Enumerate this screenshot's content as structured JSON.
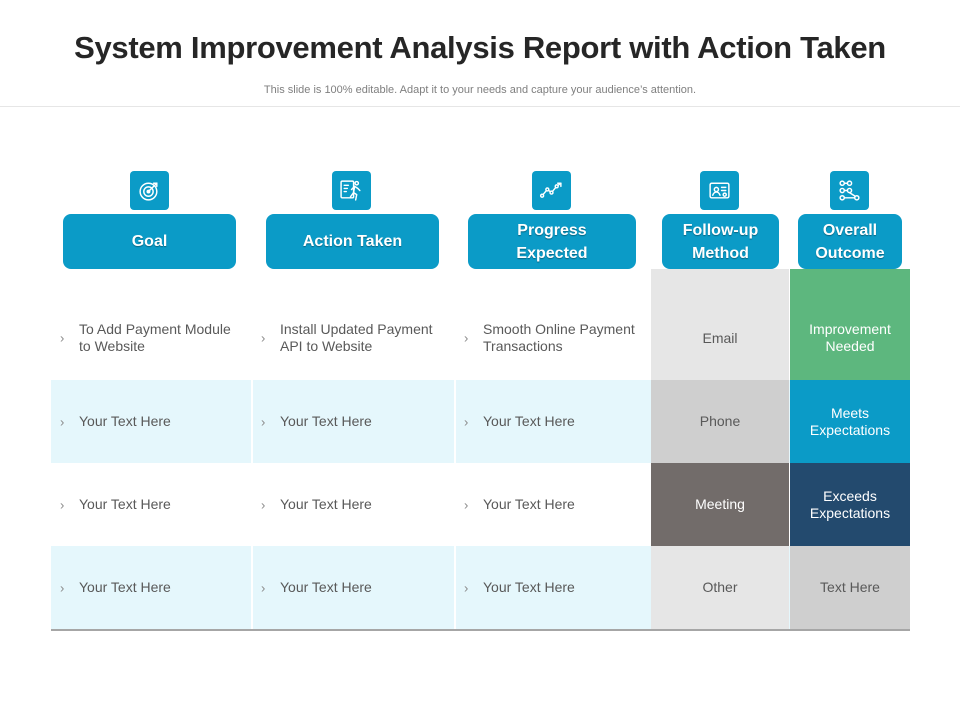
{
  "header": {
    "title": "System Improvement Analysis Report with Action Taken",
    "subtitle": "This slide is 100% editable. Adapt it to your needs and capture your audience’s attention."
  },
  "columns": [
    {
      "label": "Goal",
      "icon": "target-icon"
    },
    {
      "label": "Action Taken",
      "icon": "runner-icon"
    },
    {
      "label": "Progress\nExpected",
      "icon": "line-chart-icon"
    },
    {
      "label": "Follow-up\nMethod",
      "icon": "contact-card-icon"
    },
    {
      "label": "Overall\nOutcome",
      "icon": "flow-nodes-icon"
    }
  ],
  "rows": [
    {
      "goal": "To Add Payment Module to Website",
      "action": "Install Updated Payment API to Website",
      "progress": "Smooth Online Payment Transactions",
      "method": "Email",
      "outcome": "Improvement Needed"
    },
    {
      "goal": "Your Text Here",
      "action": "Your Text Here",
      "progress": "Your Text Here",
      "method": "Phone",
      "outcome": "Meets Expectations"
    },
    {
      "goal": "Your Text Here",
      "action": "Your Text Here",
      "progress": "Your Text Here",
      "method": "Meeting",
      "outcome": "Exceeds Expectations"
    },
    {
      "goal": "Your Text Here",
      "action": "Your Text Here",
      "progress": "Your Text Here",
      "method": "Other",
      "outcome": "Text Here"
    }
  ],
  "bullet_glyph": "›",
  "colors": {
    "accent": "#0b9bc7",
    "method_bg": [
      "#e6e6e6",
      "#cfcfcf",
      "#726c6a",
      "#e6e6e6"
    ],
    "method_fg": [
      "#595959",
      "#595959",
      "#ffffff",
      "#595959"
    ],
    "outcome_bg": [
      "#5db77e",
      "#0b9bc7",
      "#234a6e",
      "#cfcfcf"
    ],
    "outcome_fg": [
      "#ffffff",
      "#ffffff",
      "#ffffff",
      "#595959"
    ]
  }
}
